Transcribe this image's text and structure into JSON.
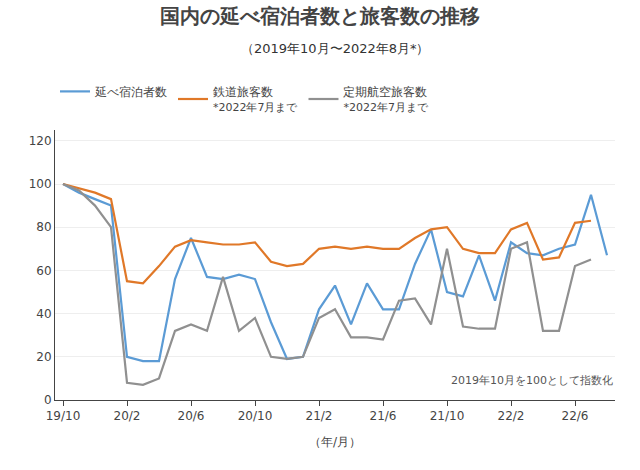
{
  "chart_data": {
    "type": "line",
    "title": "国内の延べ宿泊者数と旅客数の推移",
    "subtitle": "（2019年10月〜2022年8月*）",
    "annotations": [
      "2019年10月を100として指数化"
    ],
    "x_label": "（年/月）",
    "categories": [
      "19/10",
      null,
      null,
      null,
      "20/2",
      null,
      null,
      null,
      "20/6",
      null,
      null,
      null,
      "20/10",
      null,
      null,
      null,
      "21/2",
      null,
      null,
      null,
      "21/6",
      null,
      null,
      null,
      "21/10",
      null,
      null,
      null,
      "22/2",
      null,
      null,
      null,
      "22/6",
      null,
      null
    ],
    "xlim": [
      -0.5,
      34.5
    ],
    "ylim": [
      0,
      125
    ],
    "yticks": [
      0,
      20,
      40,
      60,
      80,
      100,
      120
    ],
    "grid": true,
    "legend": "top left",
    "series": [
      {
        "name": "延べ宿泊者数",
        "color": "#5b9bd5",
        "values": [
          100,
          96,
          93,
          90,
          20,
          18,
          18,
          56,
          75,
          57,
          56,
          58,
          56,
          36,
          19,
          20,
          42,
          53,
          35,
          54,
          42,
          42,
          63,
          79,
          50,
          48,
          67,
          46,
          73,
          68,
          67,
          70,
          72,
          95,
          67
        ]
      },
      {
        "name": "鉄道旅客数",
        "note": "*2022年7月まで",
        "color": "#e07828",
        "values": [
          100,
          98,
          96,
          93,
          55,
          54,
          62,
          71,
          74,
          73,
          72,
          72,
          73,
          64,
          62,
          63,
          70,
          71,
          70,
          71,
          70,
          70,
          75,
          79,
          80,
          70,
          68,
          68,
          79,
          82,
          65,
          66,
          82,
          83,
          null
        ]
      },
      {
        "name": "定期航空旅客数",
        "note": "*2022年7月まで",
        "color": "#909090",
        "values": [
          100,
          97,
          90,
          80,
          8,
          7,
          10,
          32,
          35,
          32,
          57,
          32,
          38,
          20,
          19,
          20,
          38,
          42,
          29,
          29,
          28,
          46,
          47,
          35,
          70,
          34,
          33,
          33,
          70,
          73,
          32,
          32,
          62,
          65,
          null
        ]
      }
    ]
  }
}
